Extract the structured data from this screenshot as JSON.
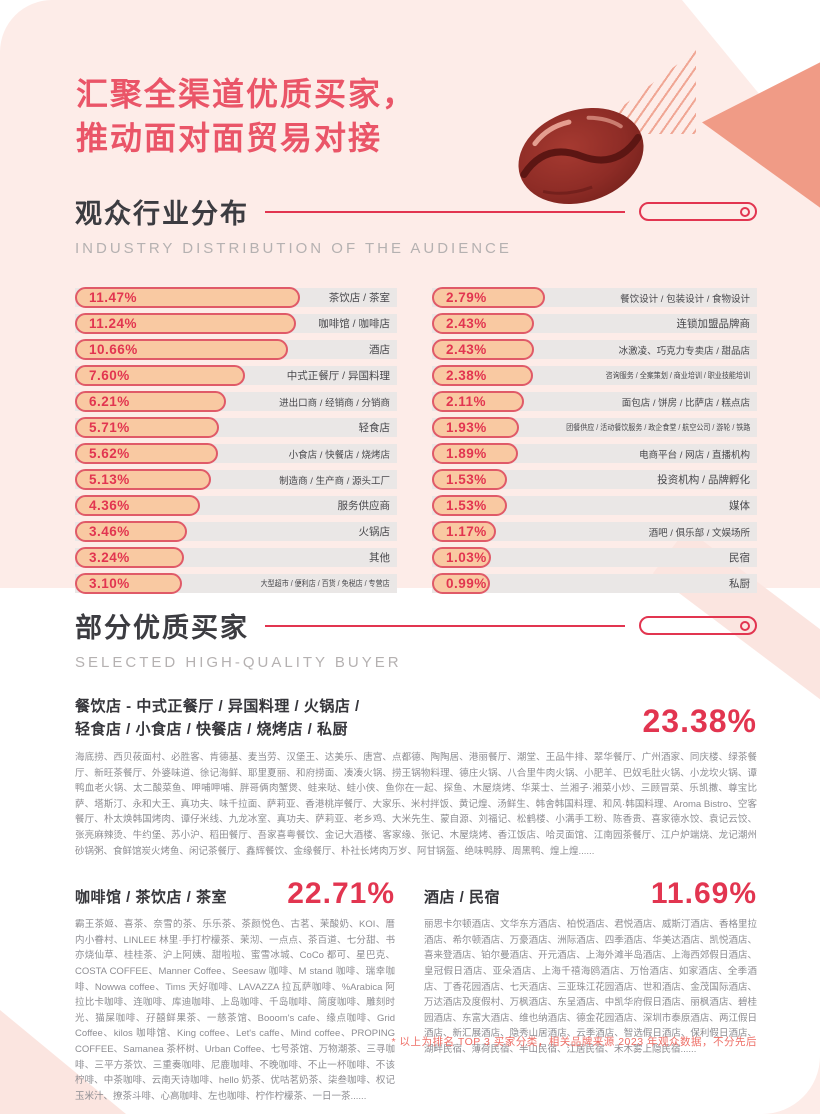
{
  "colors": {
    "accent": "#e23550",
    "hero": "#ea5568",
    "pink": "#fdece8",
    "pale": "#fbe5e0",
    "salmon": "#f09b86",
    "strip": "#eae7e6",
    "barfill": "#f9c9a2",
    "barborder": "#e05a68",
    "dark": "#3c3c41",
    "graysub": "#b5b1b1",
    "body": "#8d8d92"
  },
  "hero": {
    "title_line1": "汇聚全渠道优质买家，",
    "title_line2": "推动面对面贸易对接"
  },
  "industry_section": {
    "title": "观众行业分布",
    "subtitle": "INDUSTRY DISTRIBUTION OF THE AUDIENCE"
  },
  "chart_data": {
    "type": "bar",
    "orientation": "horizontal",
    "unit": "%",
    "title": "观众行业分布",
    "subtitle": "INDUSTRY DISTRIBUTION OF THE AUDIENCE",
    "legend": "none",
    "columns": [
      {
        "rows": [
          {
            "label": "茶饮店 / 茶室",
            "value": 11.47,
            "display": "11.47%"
          },
          {
            "label": "咖啡馆 / 咖啡店",
            "value": 11.24,
            "display": "11.24%"
          },
          {
            "label": "酒店",
            "value": 10.66,
            "display": "10.66%"
          },
          {
            "label": "中式正餐厅 / 异国料理",
            "value": 7.6,
            "display": "7.60%"
          },
          {
            "label": "进出口商 / 经销商 / 分销商",
            "value": 6.21,
            "display": "6.21%"
          },
          {
            "label": "轻食店",
            "value": 5.71,
            "display": "5.71%"
          },
          {
            "label": "小食店 / 快餐店 / 烧烤店",
            "value": 5.62,
            "display": "5.62%"
          },
          {
            "label": "制造商 / 生产商 / 源头工厂",
            "value": 5.13,
            "display": "5.13%"
          },
          {
            "label": "服务供应商",
            "value": 4.36,
            "display": "4.36%"
          },
          {
            "label": "火锅店",
            "value": 3.46,
            "display": "3.46%"
          },
          {
            "label": "其他",
            "value": 3.24,
            "display": "3.24%"
          },
          {
            "label": "大型超市 / 便利店 / 百货 / 免税店 / 专营店",
            "value": 3.1,
            "display": "3.10%"
          }
        ]
      },
      {
        "rows": [
          {
            "label": "餐饮设计 / 包装设计 / 食物设计",
            "value": 2.79,
            "display": "2.79%"
          },
          {
            "label": "连锁加盟品牌商",
            "value": 2.43,
            "display": "2.43%"
          },
          {
            "label": "冰激凌、巧克力专卖店 / 甜品店",
            "value": 2.43,
            "display": "2.43%"
          },
          {
            "label": "咨询服务 / 全案策划 / 商业培训 / 职业技能培训",
            "value": 2.38,
            "display": "2.38%"
          },
          {
            "label": "面包店 / 饼房 / 比萨店 / 糕点店",
            "value": 2.11,
            "display": "2.11%"
          },
          {
            "label": "团餐供应 / 活动餐饮服务 / 政企食堂 / 航空公司 / 游轮 / 铁路",
            "value": 1.93,
            "display": "1.93%"
          },
          {
            "label": "电商平台 / 网店 / 直播机构",
            "value": 1.89,
            "display": "1.89%"
          },
          {
            "label": "投资机构 / 品牌孵化",
            "value": 1.53,
            "display": "1.53%"
          },
          {
            "label": "媒体",
            "value": 1.53,
            "display": "1.53%"
          },
          {
            "label": "酒吧 / 俱乐部 / 文娱场所",
            "value": 1.17,
            "display": "1.17%"
          },
          {
            "label": "民宿",
            "value": 1.03,
            "display": "1.03%"
          },
          {
            "label": "私厨",
            "value": 0.99,
            "display": "0.99%"
          }
        ]
      }
    ]
  },
  "buyers_section": {
    "title": "部分优质买家",
    "subtitle": "SELECTED HIGH-QUALITY BUYER",
    "group1": {
      "heading_line1": "餐饮店 - 中式正餐厅 / 异国料理 / 火锅店 /",
      "heading_line2": "轻食店 / 小食店 / 快餐店 / 烧烤店 / 私厨",
      "percent": "23.38%",
      "brands": "海底捞、西贝莜面村、必胜客、肯德基、麦当劳、汉堡王、达美乐、唐宫、点都德、陶陶居、港丽餐厅、潮堂、王品牛排、翠华餐厅、广州酒家、同庆楼、绿茶餐厅、新旺茶餐厅、外婆味道、徐记海鲜、耶里夏丽、和府捞面、凑凑火锅、捞王锅物料理、德庄火锅、八合里牛肉火锅、小肥羊、巴奴毛肚火锅、小龙坎火锅、谭鸭血老火锅、太二酸菜鱼、呷哺呷哺、胖哥俩肉蟹煲、蛙来哒、蛙小侠、鱼你在一起、探鱼、木屋烧烤、华莱士、兰湘子·湘菜小炒、三顾冒菜、乐凯撒、尊宝比萨、塔斯汀、永和大王、真功夫、味千拉面、萨莉亚、香港桃岸餐厅、大家乐、米村拌饭、黄记煌、汤鲜生、韩舍韩国料理、和风·韩国料理、Aroma Bistro、空客餐厅、朴太焕韩国烤肉、谭仔米线、九龙冰室、真功夫、萨莉亚、老乡鸡、大米先生、蒙自源、刘福记、松鹤楼、小满手工粉、陈香贵、喜家德水饺、袁记云饺、张亮麻辣烫、牛约堡、苏小沪、稻田餐厅、吾家喜粤餐饮、金记大酒楼、客家缘、张记、木屋烧烤、香江饭店、哈灵面馆、江南园茶餐厅、江户炉端烧、龙记潮州砂锅粥、食鲜馆炭火烤鱼、闲记茶餐厅、鑫辉餐饮、金缘餐厅、朴社长烤肉万岁、阿甘锅盔、绝味鸭脖、周黑鸭、煌上煌......"
    },
    "group2": {
      "heading": "咖啡馆 / 茶饮店 / 茶室",
      "percent": "22.71%",
      "brands": "霸王茶姬、喜茶、奈雪的茶、乐乐茶、茶颜悦色、古茗、茉酸奶、KOI、厝内小眷村、LINLEE 林里·手打柠檬茶、茉沏、一点点、茶百道、七分甜、书亦烧仙草、桂桂茶、沪上阿姨、甜啦啦、蜜雪冰城、CoCo 都可、星巴克、COSTA COFFEE、Manner Coffee、Seesaw 咖啡、M stand 咖啡、瑞幸咖啡、Nowwa coffee、Tims 天好咖啡、LAVAZZA 拉瓦萨咖啡、%Arabica 阿拉比卡咖啡、连咖啡、库迪咖啡、上岛咖啡、千岛咖啡、简度咖啡、雕刻时光、猫屎咖啡、孖囍鲜果茶、一慈茶馆、Booom's cafe、缘点咖啡、Grid Coffee、kilos 咖啡馆、King coffee、Let's caffe、Mind coffee、PROPING COFFEE、Samanea 茶杯树、Urban Coffee、七号茶馆、万物潮茶、三寻咖啡、三平方茶饮、三重奏咖啡、尼鹿咖啡、不晚咖啡、不止一杯咖啡、不该柠啡、中茶咖啡、云南天诗咖啡、hello 奶茶、优咕茗奶茶、柒叁咖啡、权记玉米汁、撩茶斗啡、心高咖啡、左也咖啡、柠作柠檬茶、一日一茶......"
    },
    "group3": {
      "heading": "酒店 / 民宿",
      "percent": "11.69%",
      "brands": "丽思卡尔顿酒店、文华东方酒店、柏悦酒店、君悦酒店、威斯汀酒店、香格里拉酒店、希尔顿酒店、万豪酒店、洲际酒店、四季酒店、华美达酒店、凯悦酒店、喜来登酒店、铂尔曼酒店、开元酒店、上海外滩半岛酒店、上海西郊假日酒店、皇冠假日酒店、亚朵酒店、上海千禧海鸥酒店、万怡酒店、如家酒店、全季酒店、丁香花园酒店、七天酒店、三亚珠江花园酒店、世和酒店、金茂国际酒店、万达酒店及度假村、万枫酒店、东呈酒店、中凯华府假日酒店、丽枫酒店、碧桂园酒店、东富大酒店、维也纳酒店、德金花园酒店、深圳市泰原酒店、两江假日酒店、新汇展酒店、隐秀山居酒店、云季酒店、智选假日酒店、保利假日酒店、湖畔民宿、薄荷民宿、半山民宿、江居民宿、禾木雾上隐民宿......"
    },
    "footnote": "* 以上为排名 TOP 3 买家分类，相关品牌来源 2023 年观众数据，不分先后"
  },
  "icons": {
    "coffee-bean-icon": "coffee bean illustration"
  }
}
